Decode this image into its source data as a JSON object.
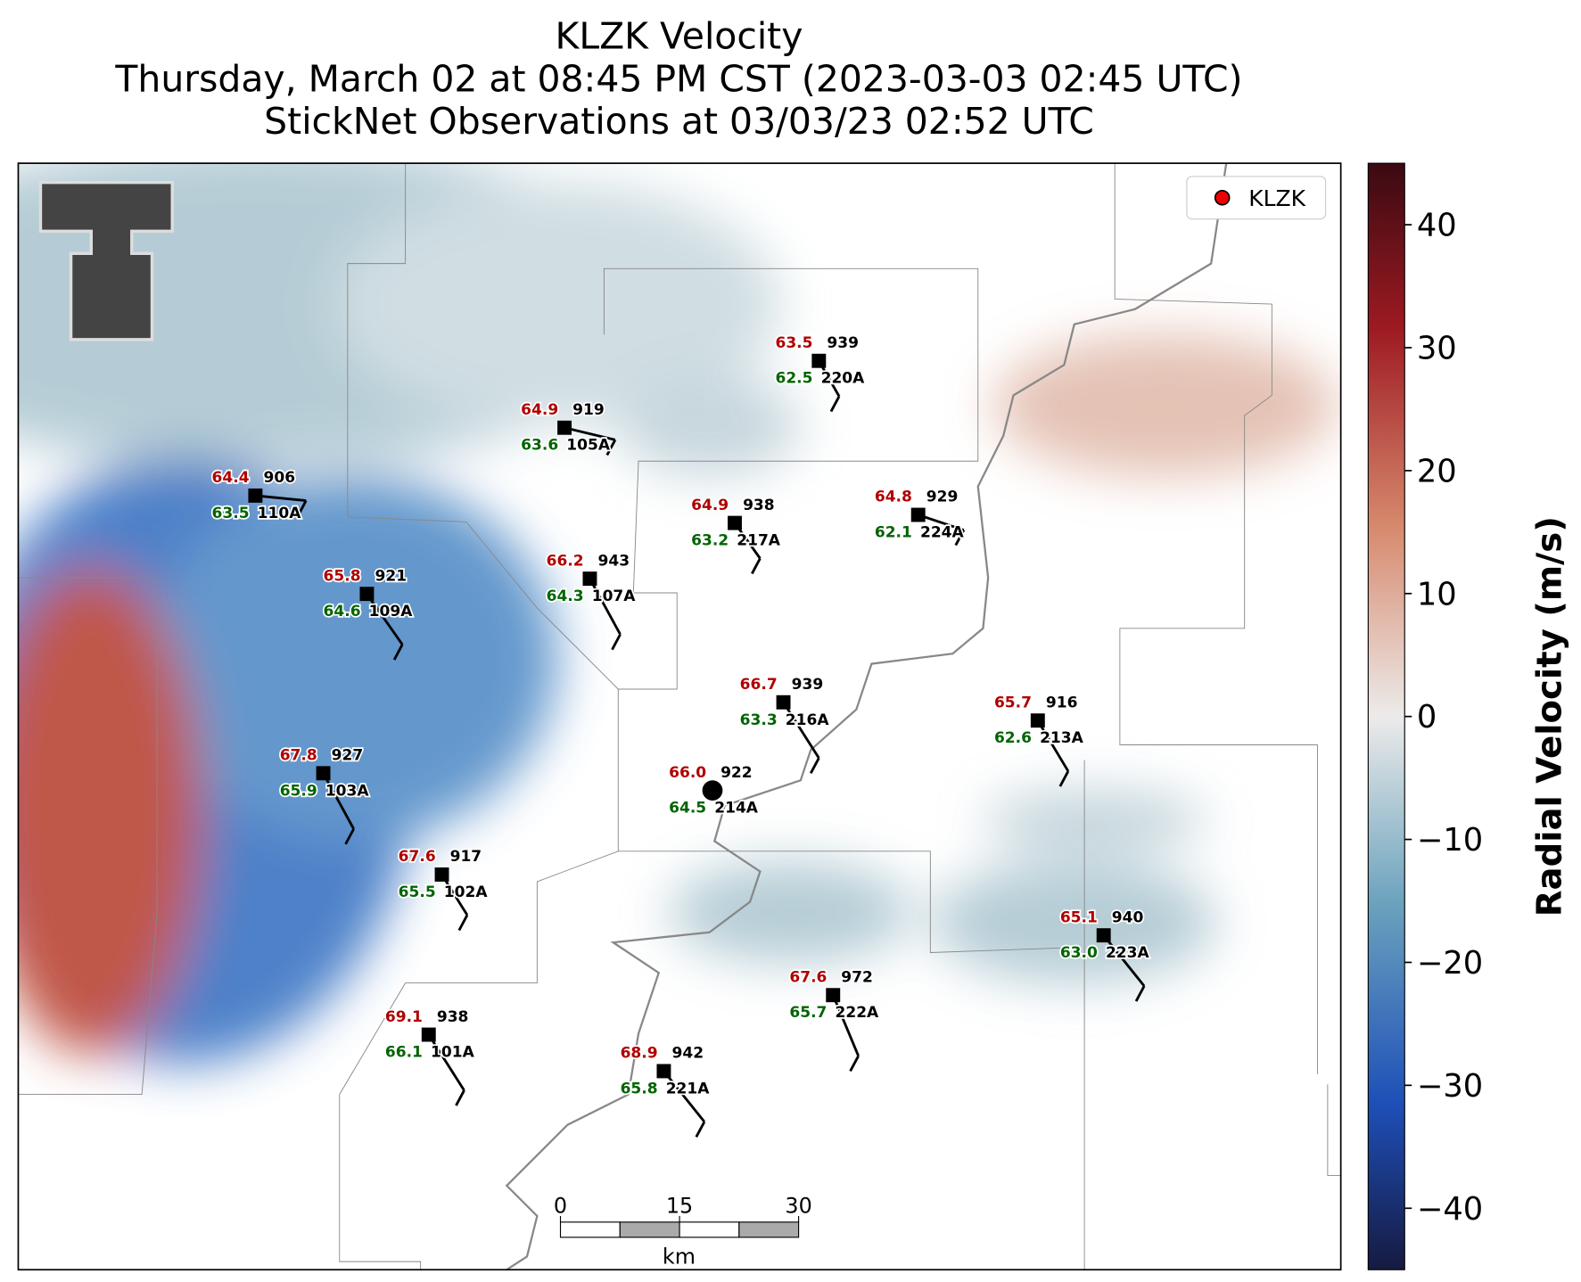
{
  "title": [
    "KLZK Velocity",
    "Thursday, March 02 at 08:45 PM CST (2023-03-03 02:45 UTC)",
    "StickNet Observations at 03/03/23 02:52 UTC"
  ],
  "legend": {
    "label": "KLZK"
  },
  "colorbar": {
    "label": "Radial Velocity (m/s)",
    "lim": [
      -45,
      45
    ],
    "ticks": [
      {
        "value": -40,
        "label": "−40"
      },
      {
        "value": -30,
        "label": "−30"
      },
      {
        "value": -20,
        "label": "−20"
      },
      {
        "value": -10,
        "label": "−10"
      },
      0,
      10,
      20,
      30,
      40
    ]
  },
  "scale_bar": {
    "ticks": [
      0,
      15,
      30
    ],
    "unit": "km"
  },
  "stations": [
    {
      "id": "220A",
      "temperature": "63.5",
      "dewpoint": "62.5",
      "pressure": "939"
    },
    {
      "id": "105A",
      "temperature": "64.9",
      "dewpoint": "63.6",
      "pressure": "919"
    },
    {
      "id": "110A",
      "temperature": "64.4",
      "dewpoint": "63.5",
      "pressure": "906"
    },
    {
      "id": "217A",
      "temperature": "64.9",
      "dewpoint": "63.2",
      "pressure": "938"
    },
    {
      "id": "224A",
      "temperature": "64.8",
      "dewpoint": "62.1",
      "pressure": "929"
    },
    {
      "id": "107A",
      "temperature": "66.2",
      "dewpoint": "64.3",
      "pressure": "943"
    },
    {
      "id": "109A",
      "temperature": "65.8",
      "dewpoint": "64.6",
      "pressure": "921"
    },
    {
      "id": "216A",
      "temperature": "66.7",
      "dewpoint": "63.3",
      "pressure": "939"
    },
    {
      "id": "213A",
      "temperature": "65.7",
      "dewpoint": "62.6",
      "pressure": "916"
    },
    {
      "id": "214A",
      "temperature": "66.0",
      "dewpoint": "64.5",
      "pressure": "922"
    },
    {
      "id": "103A",
      "temperature": "67.8",
      "dewpoint": "65.9",
      "pressure": "927"
    },
    {
      "id": "102A",
      "temperature": "67.6",
      "dewpoint": "65.5",
      "pressure": "917"
    },
    {
      "id": "223A",
      "temperature": "65.1",
      "dewpoint": "63.0",
      "pressure": "940"
    },
    {
      "id": "222A",
      "temperature": "67.6",
      "dewpoint": "65.7",
      "pressure": "972"
    },
    {
      "id": "101A",
      "temperature": "69.1",
      "dewpoint": "66.1",
      "pressure": "938"
    },
    {
      "id": "221A",
      "temperature": "68.9",
      "dewpoint": "65.8",
      "pressure": "942"
    }
  ]
}
